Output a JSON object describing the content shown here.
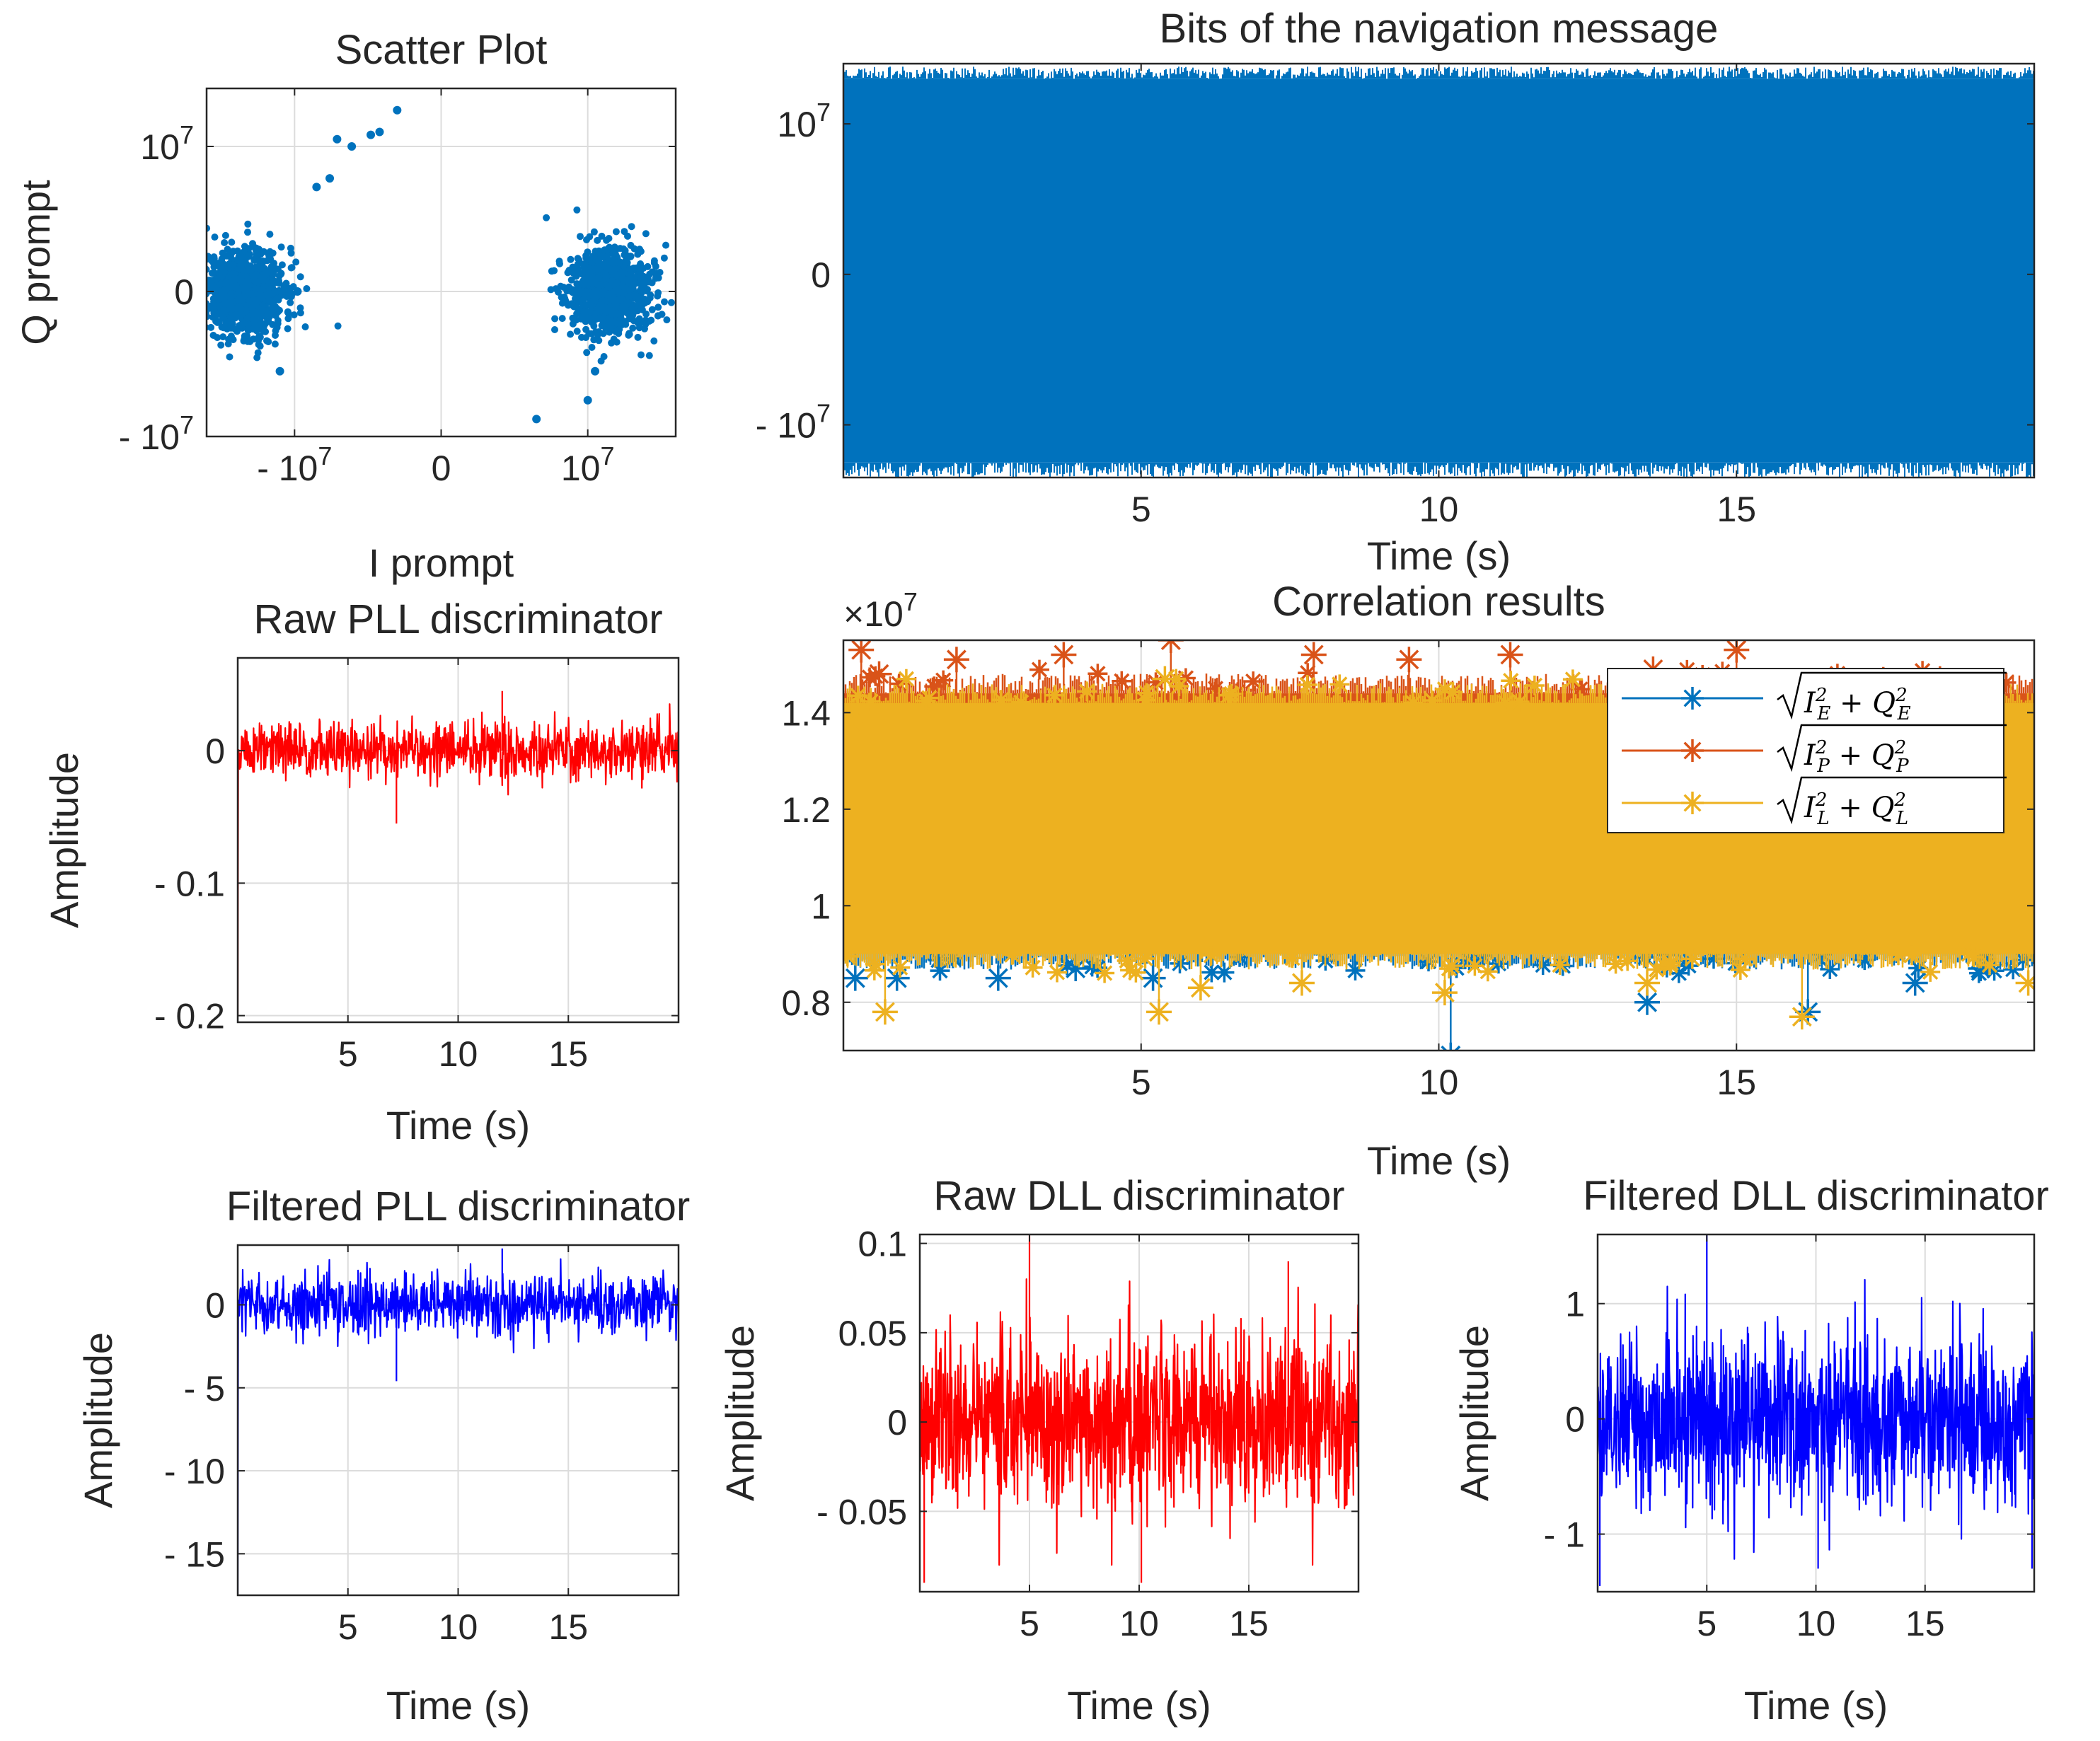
{
  "chart_data": [
    {
      "type": "scatter",
      "id": "scatter",
      "title": "Scatter Plot",
      "xlabel": "I prompt",
      "ylabel": "Q prompt",
      "xlim": [
        -16000000.0,
        16000000.0
      ],
      "ylim": [
        -10000000.0,
        14000000.0
      ],
      "xticks": [
        {
          "v": -10000000.0,
          "base": "- 10",
          "exp": "7"
        },
        {
          "v": 0,
          "base": "0",
          "exp": ""
        },
        {
          "v": 10000000.0,
          "base": "10",
          "exp": "7"
        }
      ],
      "yticks": [
        {
          "v": -10000000.0,
          "base": "- 10",
          "exp": "7"
        },
        {
          "v": 0,
          "base": "0",
          "exp": ""
        },
        {
          "v": 10000000.0,
          "base": "10",
          "exp": "7"
        }
      ],
      "color": "#0072BD",
      "clusters": [
        {
          "center": [
            -13500000.0,
            0
          ],
          "spread": [
            1400000.0,
            1500000.0
          ]
        },
        {
          "center": [
            11500000.0,
            0
          ],
          "spread": [
            1400000.0,
            1500000.0
          ]
        }
      ],
      "outliers": [
        [
          -8500000.0,
          7200000.0
        ],
        [
          -7600000.0,
          7800000.0
        ],
        [
          -7100000.0,
          10500000.0
        ],
        [
          -6100000.0,
          10000000.0
        ],
        [
          -4800000.0,
          10800000.0
        ],
        [
          -4200000.0,
          11000000.0
        ],
        [
          -3000000.0,
          12500000.0
        ],
        [
          6500000.0,
          -8800000.0
        ],
        [
          10000000.0,
          -7500000.0
        ],
        [
          10500000.0,
          -5500000.0
        ],
        [
          -11000000.0,
          -5500000.0
        ],
        [
          -9800000.0,
          0
        ]
      ]
    },
    {
      "type": "line",
      "id": "bits",
      "title": "Bits of the navigation message",
      "xlabel": "Time (s)",
      "ylabel": "",
      "xlim": [
        0,
        20
      ],
      "ylim": [
        -13500000.0,
        14000000.0
      ],
      "xticks": [
        5,
        10,
        15
      ],
      "yticks": [
        {
          "v": -10000000.0,
          "base": "- 10",
          "exp": "7"
        },
        {
          "v": 0,
          "base": "0",
          "exp": ""
        },
        {
          "v": 10000000.0,
          "base": "10",
          "exp": "7"
        }
      ],
      "series": [
        {
          "name": "bits",
          "color": "#0072BD",
          "fill_range": [
            -12500000.0,
            13000000.0
          ],
          "spike_range": [
            -13500000.0,
            13800000.0
          ]
        }
      ]
    },
    {
      "type": "line",
      "id": "corr",
      "title": "Correlation results",
      "exponent_label": "×10",
      "exponent_power": "7",
      "xlabel": "Time (s)",
      "ylabel": "",
      "xlim": [
        0,
        20
      ],
      "ylim": [
        0.7,
        1.55
      ],
      "xticks": [
        5,
        10,
        15
      ],
      "yticks": [
        0.8,
        1,
        1.2,
        1.4
      ],
      "series": [
        {
          "name": "sqrt(I_E^2 + Q_E^2)",
          "color": "#0072BD",
          "band": [
            0.9,
            1.36
          ],
          "outliers": [
            [
              0.2,
              0.85
            ],
            [
              0.9,
              0.85
            ],
            [
              2.6,
              0.85
            ],
            [
              3.9,
              0.87
            ],
            [
              5.2,
              0.85
            ],
            [
              10.2,
              0.69
            ],
            [
              13.5,
              0.8
            ],
            [
              16.2,
              0.78
            ],
            [
              18.0,
              0.84
            ],
            [
              19.1,
              0.87
            ]
          ]
        },
        {
          "name": "sqrt(I_P^2 + Q_P^2)",
          "color": "#D95319",
          "band": [
            1.08,
            1.44
          ],
          "outliers": [
            [
              0.3,
              1.53
            ],
            [
              0.6,
              1.48
            ],
            [
              1.9,
              1.51
            ],
            [
              3.7,
              1.52
            ],
            [
              5.5,
              1.55
            ],
            [
              7.9,
              1.52
            ],
            [
              9.5,
              1.51
            ],
            [
              11.2,
              1.52
            ],
            [
              13.6,
              1.49
            ],
            [
              15.0,
              1.53
            ]
          ]
        },
        {
          "name": "sqrt(I_L^2 + Q_L^2)",
          "color": "#EDB120",
          "band": [
            0.9,
            1.42
          ],
          "outliers": [
            [
              0.7,
              0.78
            ],
            [
              5.3,
              0.78
            ],
            [
              6.0,
              0.83
            ],
            [
              7.7,
              0.84
            ],
            [
              10.1,
              0.82
            ],
            [
              13.5,
              0.84
            ],
            [
              16.1,
              0.77
            ],
            [
              19.9,
              0.84
            ],
            [
              0.1,
              1.38
            ],
            [
              5.4,
              1.47
            ]
          ]
        }
      ],
      "legend": {
        "placement": "top-right",
        "entries": [
          {
            "base": "I",
            "sub": "E",
            "qbase": "Q"
          },
          {
            "base": "I",
            "sub": "P",
            "qbase": "Q"
          },
          {
            "base": "I",
            "sub": "L",
            "qbase": "Q"
          }
        ]
      }
    },
    {
      "type": "line",
      "id": "rawpll",
      "title": "Raw PLL discriminator",
      "xlabel": "Time (s)",
      "ylabel": "Amplitude",
      "xlim": [
        0,
        20
      ],
      "ylim": [
        -0.205,
        0.07
      ],
      "xticks": [
        5,
        10,
        15
      ],
      "yticks": [
        {
          "v": -0.2,
          "label": "- 0.2"
        },
        {
          "v": -0.1,
          "label": "- 0.1"
        },
        {
          "v": 0,
          "label": "0"
        }
      ],
      "series": [
        {
          "name": "raw pll",
          "color": "#FF0000",
          "noise_sd": 0.011,
          "initial_dip": -0.2,
          "extremes": [
            [
              7.2,
              -0.055
            ],
            [
              12.0,
              0.045
            ]
          ]
        }
      ]
    },
    {
      "type": "line",
      "id": "filtpll",
      "title": "Filtered PLL discriminator",
      "xlabel": "Time (s)",
      "ylabel": "Amplitude",
      "xlim": [
        0,
        20
      ],
      "ylim": [
        -17.5,
        3.6
      ],
      "xticks": [
        5,
        10,
        15
      ],
      "yticks": [
        {
          "v": -15,
          "label": "- 15"
        },
        {
          "v": -10,
          "label": "- 10"
        },
        {
          "v": -5,
          "label": "- 5"
        },
        {
          "v": 0,
          "label": "0"
        }
      ],
      "series": [
        {
          "name": "filtered pll",
          "color": "#0000FF",
          "noise_sd": 0.9,
          "initial_dip": -17.5,
          "extremes": [
            [
              7.2,
              -4.6
            ],
            [
              12.0,
              3.4
            ]
          ]
        }
      ]
    },
    {
      "type": "line",
      "id": "rawdll",
      "title": "Raw DLL discriminator",
      "xlabel": "Time (s)",
      "ylabel": "Amplitude",
      "xlim": [
        0,
        20
      ],
      "ylim": [
        -0.095,
        0.105
      ],
      "xticks": [
        5,
        10,
        15
      ],
      "yticks": [
        {
          "v": -0.05,
          "label": "- 0.05"
        },
        {
          "v": 0,
          "label": "0"
        },
        {
          "v": 0.05,
          "label": "0.05"
        },
        {
          "v": 0.1,
          "label": "0.1"
        }
      ],
      "series": [
        {
          "name": "raw dll",
          "color": "#FF0000",
          "noise_sd": 0.025,
          "extremes": [
            [
              5.0,
              0.105
            ],
            [
              10.1,
              -0.09
            ],
            [
              16.8,
              0.09
            ],
            [
              0.2,
              -0.09
            ]
          ]
        }
      ]
    },
    {
      "type": "line",
      "id": "filtdll",
      "title": "Filtered DLL discriminator",
      "xlabel": "Time (s)",
      "ylabel": "Amplitude",
      "xlim": [
        0,
        20
      ],
      "ylim": [
        -1.5,
        1.6
      ],
      "xticks": [
        5,
        10,
        15
      ],
      "yticks": [
        {
          "v": -1,
          "label": "- 1"
        },
        {
          "v": 0,
          "label": "0"
        },
        {
          "v": 1,
          "label": "1"
        }
      ],
      "series": [
        {
          "name": "filtered dll",
          "color": "#0000FF",
          "noise_sd": 0.38,
          "extremes": [
            [
              5.0,
              1.6
            ],
            [
              0.1,
              -1.45
            ],
            [
              19.9,
              -1.3
            ],
            [
              10.1,
              -1.3
            ]
          ]
        }
      ]
    }
  ]
}
